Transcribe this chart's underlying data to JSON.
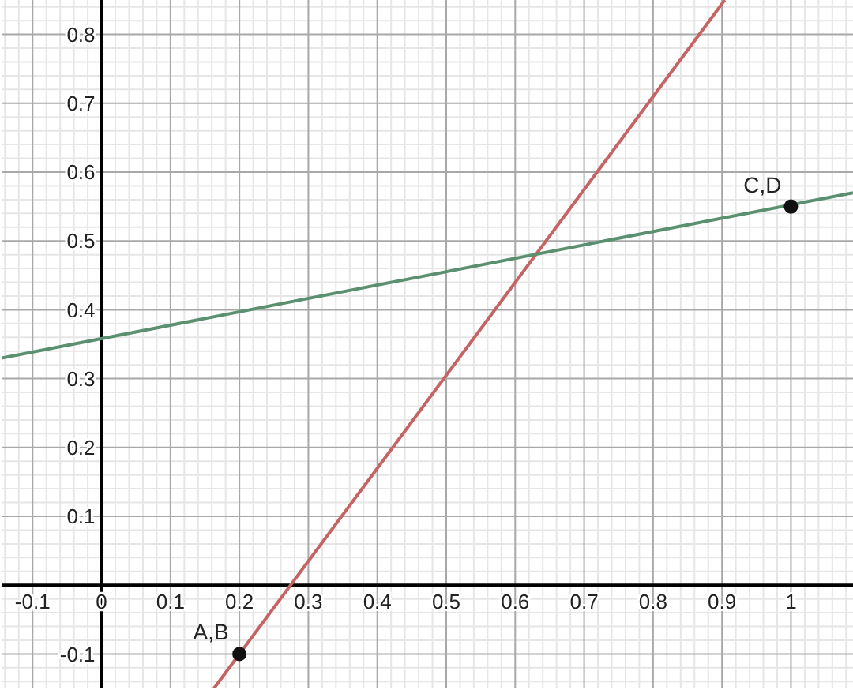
{
  "chart_data": {
    "type": "line",
    "xlim": [
      -0.145,
      1.09
    ],
    "ylim": [
      -0.15,
      0.85
    ],
    "xticks": [
      {
        "value": -0.14,
        "label": null
      },
      {
        "value": -0.12,
        "label": null
      },
      -0.1,
      {
        "value": -0.08,
        "label": null
      },
      {
        "value": -0.06,
        "label": null
      },
      {
        "value": -0.04,
        "label": null
      },
      {
        "value": -0.02,
        "label": null
      },
      0,
      {
        "value": 0.02,
        "label": null
      },
      {
        "value": 0.04,
        "label": null
      },
      {
        "value": 0.06,
        "label": null
      },
      {
        "value": 0.08,
        "label": null
      },
      0.1,
      {
        "value": 0.12,
        "label": null
      },
      {
        "value": 0.14,
        "label": null
      },
      {
        "value": 0.16,
        "label": null
      },
      {
        "value": 0.18,
        "label": null
      },
      0.2,
      {
        "value": 0.22,
        "label": null
      },
      {
        "value": 0.24,
        "label": null
      },
      {
        "value": 0.26,
        "label": null
      },
      {
        "value": 0.28,
        "label": null
      },
      0.3,
      {
        "value": 0.32,
        "label": null
      },
      {
        "value": 0.34,
        "label": null
      },
      {
        "value": 0.36,
        "label": null
      },
      {
        "value": 0.38,
        "label": null
      },
      0.4,
      {
        "value": 0.42,
        "label": null
      },
      {
        "value": 0.44,
        "label": null
      },
      {
        "value": 0.46,
        "label": null
      },
      {
        "value": 0.48,
        "label": null
      },
      0.5,
      {
        "value": 0.52,
        "label": null
      },
      {
        "value": 0.54,
        "label": null
      },
      {
        "value": 0.56,
        "label": null
      },
      {
        "value": 0.58,
        "label": null
      },
      0.6,
      {
        "value": 0.62,
        "label": null
      },
      {
        "value": 0.64,
        "label": null
      },
      {
        "value": 0.66,
        "label": null
      },
      {
        "value": 0.68,
        "label": null
      },
      0.7,
      {
        "value": 0.72,
        "label": null
      },
      {
        "value": 0.74,
        "label": null
      },
      {
        "value": 0.76,
        "label": null
      },
      {
        "value": 0.78,
        "label": null
      },
      0.8,
      {
        "value": 0.82,
        "label": null
      },
      {
        "value": 0.84,
        "label": null
      },
      {
        "value": 0.86,
        "label": null
      },
      {
        "value": 0.88,
        "label": null
      },
      0.9,
      {
        "value": 0.92,
        "label": null
      },
      {
        "value": 0.94,
        "label": null
      },
      {
        "value": 0.96,
        "label": null
      },
      {
        "value": 0.98,
        "label": null
      },
      1,
      {
        "value": 1.02,
        "label": null
      },
      {
        "value": 1.04,
        "label": null
      },
      {
        "value": 1.06,
        "label": null
      },
      {
        "value": 1.08,
        "label": null
      }
    ],
    "yticks": [
      {
        "value": -0.14,
        "label": null
      },
      {
        "value": -0.12,
        "label": null
      },
      -0.1,
      {
        "value": -0.08,
        "label": null
      },
      {
        "value": -0.06,
        "label": null
      },
      {
        "value": -0.04,
        "label": null
      },
      {
        "value": -0.02,
        "label": null
      },
      {
        "value": 0,
        "label": null
      },
      {
        "value": 0.02,
        "label": null
      },
      {
        "value": 0.04,
        "label": null
      },
      {
        "value": 0.06,
        "label": null
      },
      {
        "value": 0.08,
        "label": null
      },
      0.1,
      {
        "value": 0.12,
        "label": null
      },
      {
        "value": 0.14,
        "label": null
      },
      {
        "value": 0.16,
        "label": null
      },
      {
        "value": 0.18,
        "label": null
      },
      0.2,
      {
        "value": 0.22,
        "label": null
      },
      {
        "value": 0.24,
        "label": null
      },
      {
        "value": 0.26,
        "label": null
      },
      {
        "value": 0.28,
        "label": null
      },
      0.3,
      {
        "value": 0.32,
        "label": null
      },
      {
        "value": 0.34,
        "label": null
      },
      {
        "value": 0.36,
        "label": null
      },
      {
        "value": 0.38,
        "label": null
      },
      0.4,
      {
        "value": 0.42,
        "label": null
      },
      {
        "value": 0.44,
        "label": null
      },
      {
        "value": 0.46,
        "label": null
      },
      {
        "value": 0.48,
        "label": null
      },
      0.5,
      {
        "value": 0.52,
        "label": null
      },
      {
        "value": 0.54,
        "label": null
      },
      {
        "value": 0.56,
        "label": null
      },
      {
        "value": 0.58,
        "label": null
      },
      0.6,
      {
        "value": 0.62,
        "label": null
      },
      {
        "value": 0.64,
        "label": null
      },
      {
        "value": 0.66,
        "label": null
      },
      {
        "value": 0.68,
        "label": null
      },
      0.7,
      {
        "value": 0.72,
        "label": null
      },
      {
        "value": 0.74,
        "label": null
      },
      {
        "value": 0.76,
        "label": null
      },
      {
        "value": 0.78,
        "label": null
      },
      0.8,
      {
        "value": 0.82,
        "label": null
      },
      {
        "value": 0.84,
        "label": null
      }
    ],
    "grid": true,
    "series": [
      {
        "color": "#c46464",
        "x": [
          0.163,
          0.904
        ],
        "values": [
          -0.15,
          0.85
        ]
      },
      {
        "color": "#5a9070",
        "x": [
          -0.145,
          1.09
        ],
        "values": [
          0.33,
          0.57
        ]
      },
      {
        "type": "scatter",
        "color": "#111111",
        "marker": "circle",
        "x": [
          0.2,
          1
        ],
        "values": [
          -0.1,
          0.55
        ]
      }
    ],
    "annotations": [
      {
        "text": "A,B",
        "x": 0.2,
        "y": -0.1
      },
      {
        "text": "C,D",
        "x": 1,
        "y": 0.55
      }
    ]
  }
}
